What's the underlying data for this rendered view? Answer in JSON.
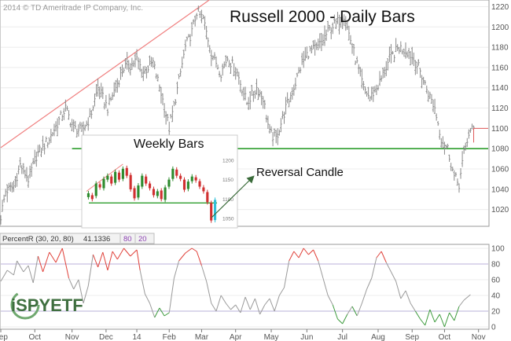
{
  "copyright": "2014 © TD Ameritrade IP Company, Inc.",
  "logo_text": "iSPYETF",
  "colors": {
    "price_bar": "#8a8a8a",
    "trendline": "#f08080",
    "support_line": "#2e9e2e",
    "overbought": "#e0413a",
    "oversold": "#3c9a3c",
    "neutral": "#9a9a9a",
    "inset_up": "#2e8b2e",
    "inset_down": "#d03030",
    "inset_reversal": "#30c0d8",
    "annotation": "#3a6b3a"
  },
  "chart_data": [
    {
      "type": "line",
      "title": "Russell 2000 - Daily Bars",
      "ylim": [
        1005,
        1225
      ],
      "y_ticks": [
        1020,
        1040,
        1060,
        1080,
        1100,
        1120,
        1140,
        1160,
        1180,
        1200,
        1220
      ],
      "x_ticks": [
        "Sep",
        "Oct",
        "Nov",
        "Dec",
        "14",
        "Feb",
        "Mar",
        "Apr",
        "May",
        "Jun",
        "Jul",
        "Aug",
        "Sep",
        "Oct",
        "Nov"
      ],
      "x_tick_positions": [
        0,
        21,
        44,
        65,
        84,
        104,
        124,
        145,
        167,
        189,
        211,
        233,
        254,
        274,
        295
      ],
      "num_days": 300,
      "price_anchors": [
        [
          0,
          1013
        ],
        [
          3,
          1038
        ],
        [
          8,
          1043
        ],
        [
          12,
          1064
        ],
        [
          17,
          1050
        ],
        [
          22,
          1073
        ],
        [
          30,
          1090
        ],
        [
          40,
          1120
        ],
        [
          45,
          1100
        ],
        [
          50,
          1098
        ],
        [
          55,
          1110
        ],
        [
          60,
          1140
        ],
        [
          66,
          1120
        ],
        [
          72,
          1145
        ],
        [
          76,
          1160
        ],
        [
          80,
          1162
        ],
        [
          84,
          1168
        ],
        [
          88,
          1155
        ],
        [
          94,
          1165
        ],
        [
          99,
          1135
        ],
        [
          104,
          1100
        ],
        [
          108,
          1130
        ],
        [
          114,
          1180
        ],
        [
          118,
          1195
        ],
        [
          121,
          1215
        ],
        [
          125,
          1208
        ],
        [
          130,
          1175
        ],
        [
          136,
          1155
        ],
        [
          140,
          1170
        ],
        [
          146,
          1155
        ],
        [
          152,
          1125
        ],
        [
          158,
          1140
        ],
        [
          162,
          1130
        ],
        [
          166,
          1095
        ],
        [
          170,
          1090
        ],
        [
          176,
          1120
        ],
        [
          182,
          1145
        ],
        [
          186,
          1165
        ],
        [
          190,
          1175
        ],
        [
          196,
          1180
        ],
        [
          200,
          1190
        ],
        [
          204,
          1200
        ],
        [
          208,
          1205
        ],
        [
          212,
          1212
        ],
        [
          218,
          1175
        ],
        [
          224,
          1140
        ],
        [
          228,
          1130
        ],
        [
          234,
          1145
        ],
        [
          240,
          1168
        ],
        [
          246,
          1180
        ],
        [
          252,
          1175
        ],
        [
          258,
          1160
        ],
        [
          264,
          1135
        ],
        [
          268,
          1120
        ],
        [
          272,
          1090
        ],
        [
          276,
          1080
        ],
        [
          280,
          1052
        ],
        [
          283,
          1045
        ],
        [
          286,
          1075
        ],
        [
          289,
          1095
        ],
        [
          292,
          1100
        ]
      ],
      "last_close": 1100,
      "trendline": [
        [
          0,
          1081
        ],
        [
          130,
          1228
        ]
      ],
      "support_level": 1080,
      "annotation": "Reversal Candle"
    },
    {
      "type": "bar",
      "title": "Weekly Bars",
      "ylim": [
        1030,
        1220
      ],
      "y_ticks": [
        1050,
        1100,
        1150,
        1200
      ],
      "support_level": 1090,
      "candles": [
        [
          1105,
          1115
        ],
        [
          1110,
          1100
        ],
        [
          1108,
          1140
        ],
        [
          1138,
          1130
        ],
        [
          1128,
          1152
        ],
        [
          1150,
          1160
        ],
        [
          1158,
          1140
        ],
        [
          1142,
          1170
        ],
        [
          1168,
          1150
        ],
        [
          1152,
          1178
        ],
        [
          1180,
          1160
        ],
        [
          1162,
          1125
        ],
        [
          1128,
          1102
        ],
        [
          1104,
          1135
        ],
        [
          1132,
          1160
        ],
        [
          1158,
          1140
        ],
        [
          1140,
          1128
        ],
        [
          1126,
          1110
        ],
        [
          1108,
          1120
        ],
        [
          1122,
          1100
        ],
        [
          1098,
          1130
        ],
        [
          1132,
          1150
        ],
        [
          1152,
          1178
        ],
        [
          1176,
          1160
        ],
        [
          1160,
          1152
        ],
        [
          1150,
          1124
        ],
        [
          1126,
          1145
        ],
        [
          1146,
          1158
        ],
        [
          1156,
          1148
        ],
        [
          1146,
          1132
        ],
        [
          1130,
          1120
        ],
        [
          1118,
          1092
        ],
        [
          1090,
          1045
        ],
        [
          1046,
          1098
        ]
      ]
    },
    {
      "type": "line",
      "title": "PercentR (30, 20, 80)",
      "indicator_label": "PercentR (30, 20, 80)",
      "current_value": "41.1336",
      "upper_band": "80",
      "lower_band": "20",
      "ylim": [
        0,
        100
      ],
      "y_ticks": [
        0,
        20,
        40,
        60,
        80,
        100
      ],
      "anchors": [
        [
          0,
          58
        ],
        [
          4,
          72
        ],
        [
          8,
          66
        ],
        [
          10,
          84
        ],
        [
          14,
          70
        ],
        [
          17,
          78
        ],
        [
          20,
          56
        ],
        [
          23,
          90
        ],
        [
          26,
          70
        ],
        [
          30,
          95
        ],
        [
          34,
          82
        ],
        [
          38,
          100
        ],
        [
          42,
          62
        ],
        [
          45,
          48
        ],
        [
          48,
          60
        ],
        [
          51,
          30
        ],
        [
          54,
          52
        ],
        [
          57,
          92
        ],
        [
          60,
          76
        ],
        [
          63,
          95
        ],
        [
          66,
          72
        ],
        [
          69,
          96
        ],
        [
          72,
          86
        ],
        [
          76,
          100
        ],
        [
          80,
          90
        ],
        [
          84,
          98
        ],
        [
          86,
          72
        ],
        [
          89,
          42
        ],
        [
          92,
          30
        ],
        [
          95,
          12
        ],
        [
          98,
          24
        ],
        [
          101,
          14
        ],
        [
          104,
          18
        ],
        [
          107,
          62
        ],
        [
          110,
          84
        ],
        [
          114,
          94
        ],
        [
          118,
          100
        ],
        [
          121,
          96
        ],
        [
          124,
          78
        ],
        [
          127,
          58
        ],
        [
          130,
          30
        ],
        [
          133,
          20
        ],
        [
          136,
          40
        ],
        [
          139,
          30
        ],
        [
          142,
          22
        ],
        [
          145,
          28
        ],
        [
          148,
          18
        ],
        [
          151,
          38
        ],
        [
          154,
          22
        ],
        [
          157,
          36
        ],
        [
          160,
          16
        ],
        [
          163,
          28
        ],
        [
          166,
          36
        ],
        [
          169,
          20
        ],
        [
          172,
          40
        ],
        [
          175,
          50
        ],
        [
          178,
          84
        ],
        [
          181,
          96
        ],
        [
          184,
          88
        ],
        [
          187,
          100
        ],
        [
          190,
          92
        ],
        [
          193,
          98
        ],
        [
          196,
          84
        ],
        [
          199,
          62
        ],
        [
          202,
          40
        ],
        [
          205,
          28
        ],
        [
          208,
          10
        ],
        [
          211,
          4
        ],
        [
          214,
          16
        ],
        [
          217,
          26
        ],
        [
          220,
          14
        ],
        [
          223,
          30
        ],
        [
          226,
          48
        ],
        [
          229,
          62
        ],
        [
          232,
          88
        ],
        [
          235,
          96
        ],
        [
          238,
          82
        ],
        [
          241,
          70
        ],
        [
          244,
          58
        ],
        [
          247,
          36
        ],
        [
          250,
          46
        ],
        [
          253,
          30
        ],
        [
          256,
          20
        ],
        [
          259,
          10
        ],
        [
          262,
          2
        ],
        [
          265,
          22
        ],
        [
          268,
          6
        ],
        [
          271,
          16
        ],
        [
          274,
          0
        ],
        [
          277,
          18
        ],
        [
          280,
          8
        ],
        [
          283,
          26
        ],
        [
          286,
          34
        ],
        [
          290,
          41
        ]
      ],
      "overbought": 80,
      "oversold": 20
    }
  ]
}
